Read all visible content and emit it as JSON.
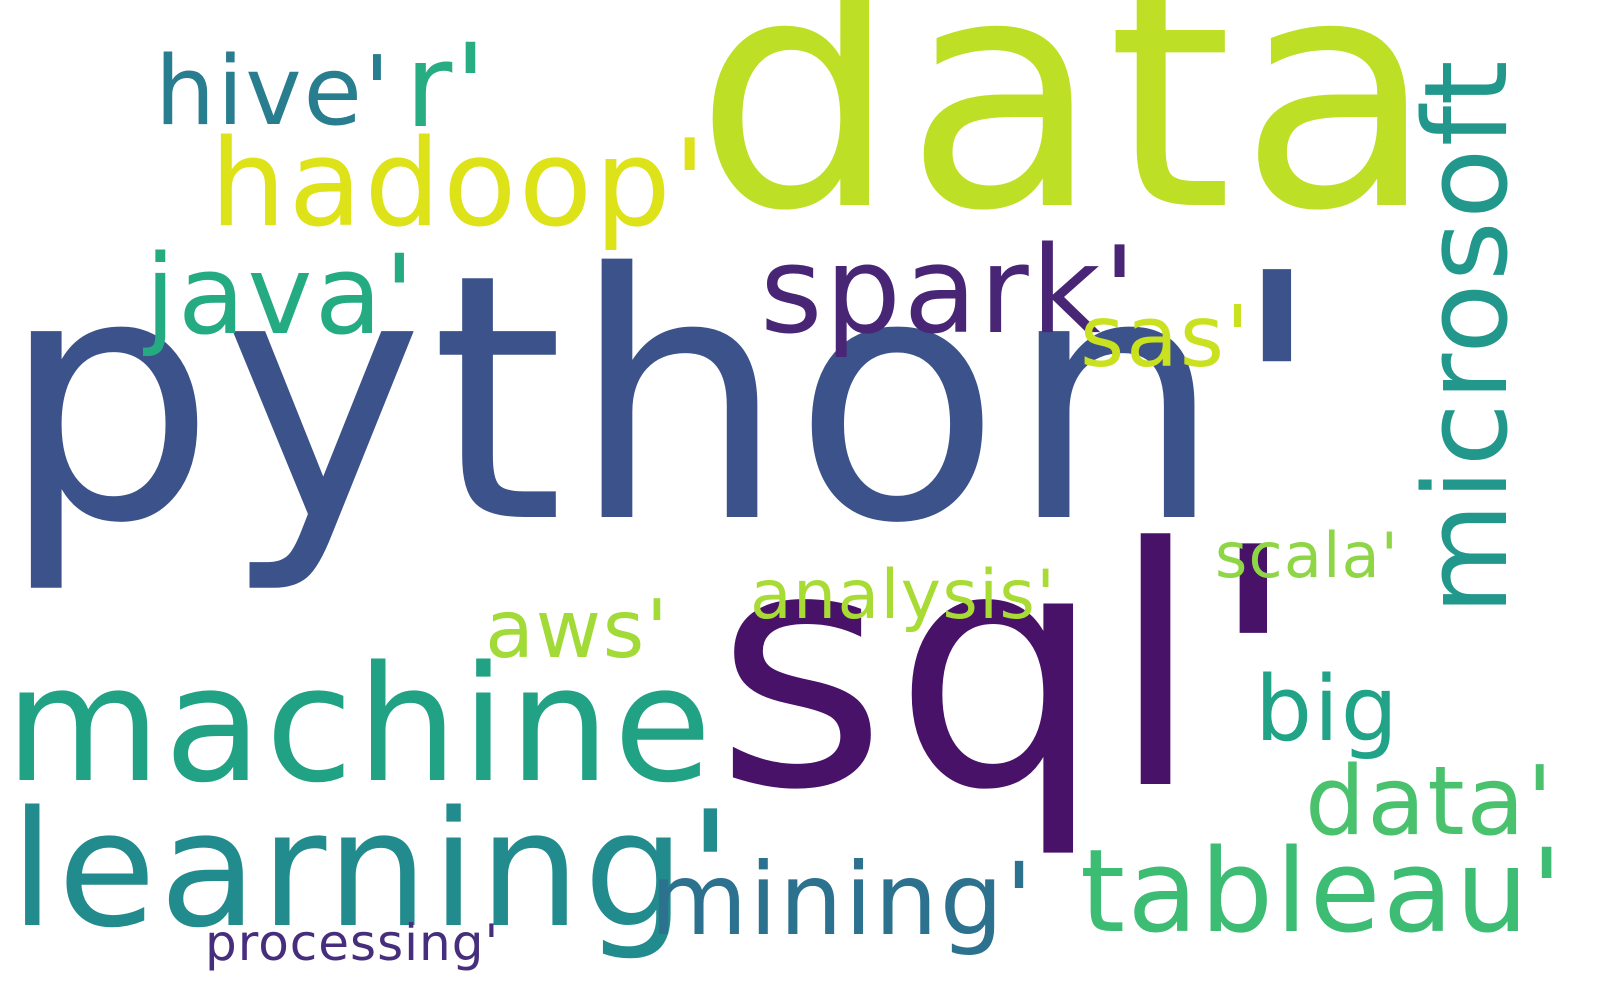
{
  "words": [
    {
      "text": "python'",
      "color": "#3b528b"
    },
    {
      "text": "data",
      "color": "#bddf26"
    },
    {
      "text": "sql'",
      "color": "#481269"
    },
    {
      "text": "machine",
      "color": "#21a285"
    },
    {
      "text": "learning'",
      "color": "#228b8d"
    },
    {
      "text": "microsoft",
      "color": "#22988c"
    },
    {
      "text": "hadoop'",
      "color": "#dde318"
    },
    {
      "text": "spark'",
      "color": "#482575"
    },
    {
      "text": "java'",
      "color": "#25ab82"
    },
    {
      "text": "r'",
      "color": "#27ad81"
    },
    {
      "text": "hive'",
      "color": "#287d8e"
    },
    {
      "text": "sas'",
      "color": "#cae11f"
    },
    {
      "text": "big",
      "color": "#20a386"
    },
    {
      "text": "data'",
      "color": "#4ac16d"
    },
    {
      "text": "tableau'",
      "color": "#3dbc74"
    },
    {
      "text": "mining'",
      "color": "#2c718e"
    },
    {
      "text": "aws'",
      "color": "#a2da37"
    },
    {
      "text": "analysis'",
      "color": "#a8db34"
    },
    {
      "text": "scala'",
      "color": "#8ed645"
    },
    {
      "text": "processing'",
      "color": "#472e7c"
    }
  ]
}
